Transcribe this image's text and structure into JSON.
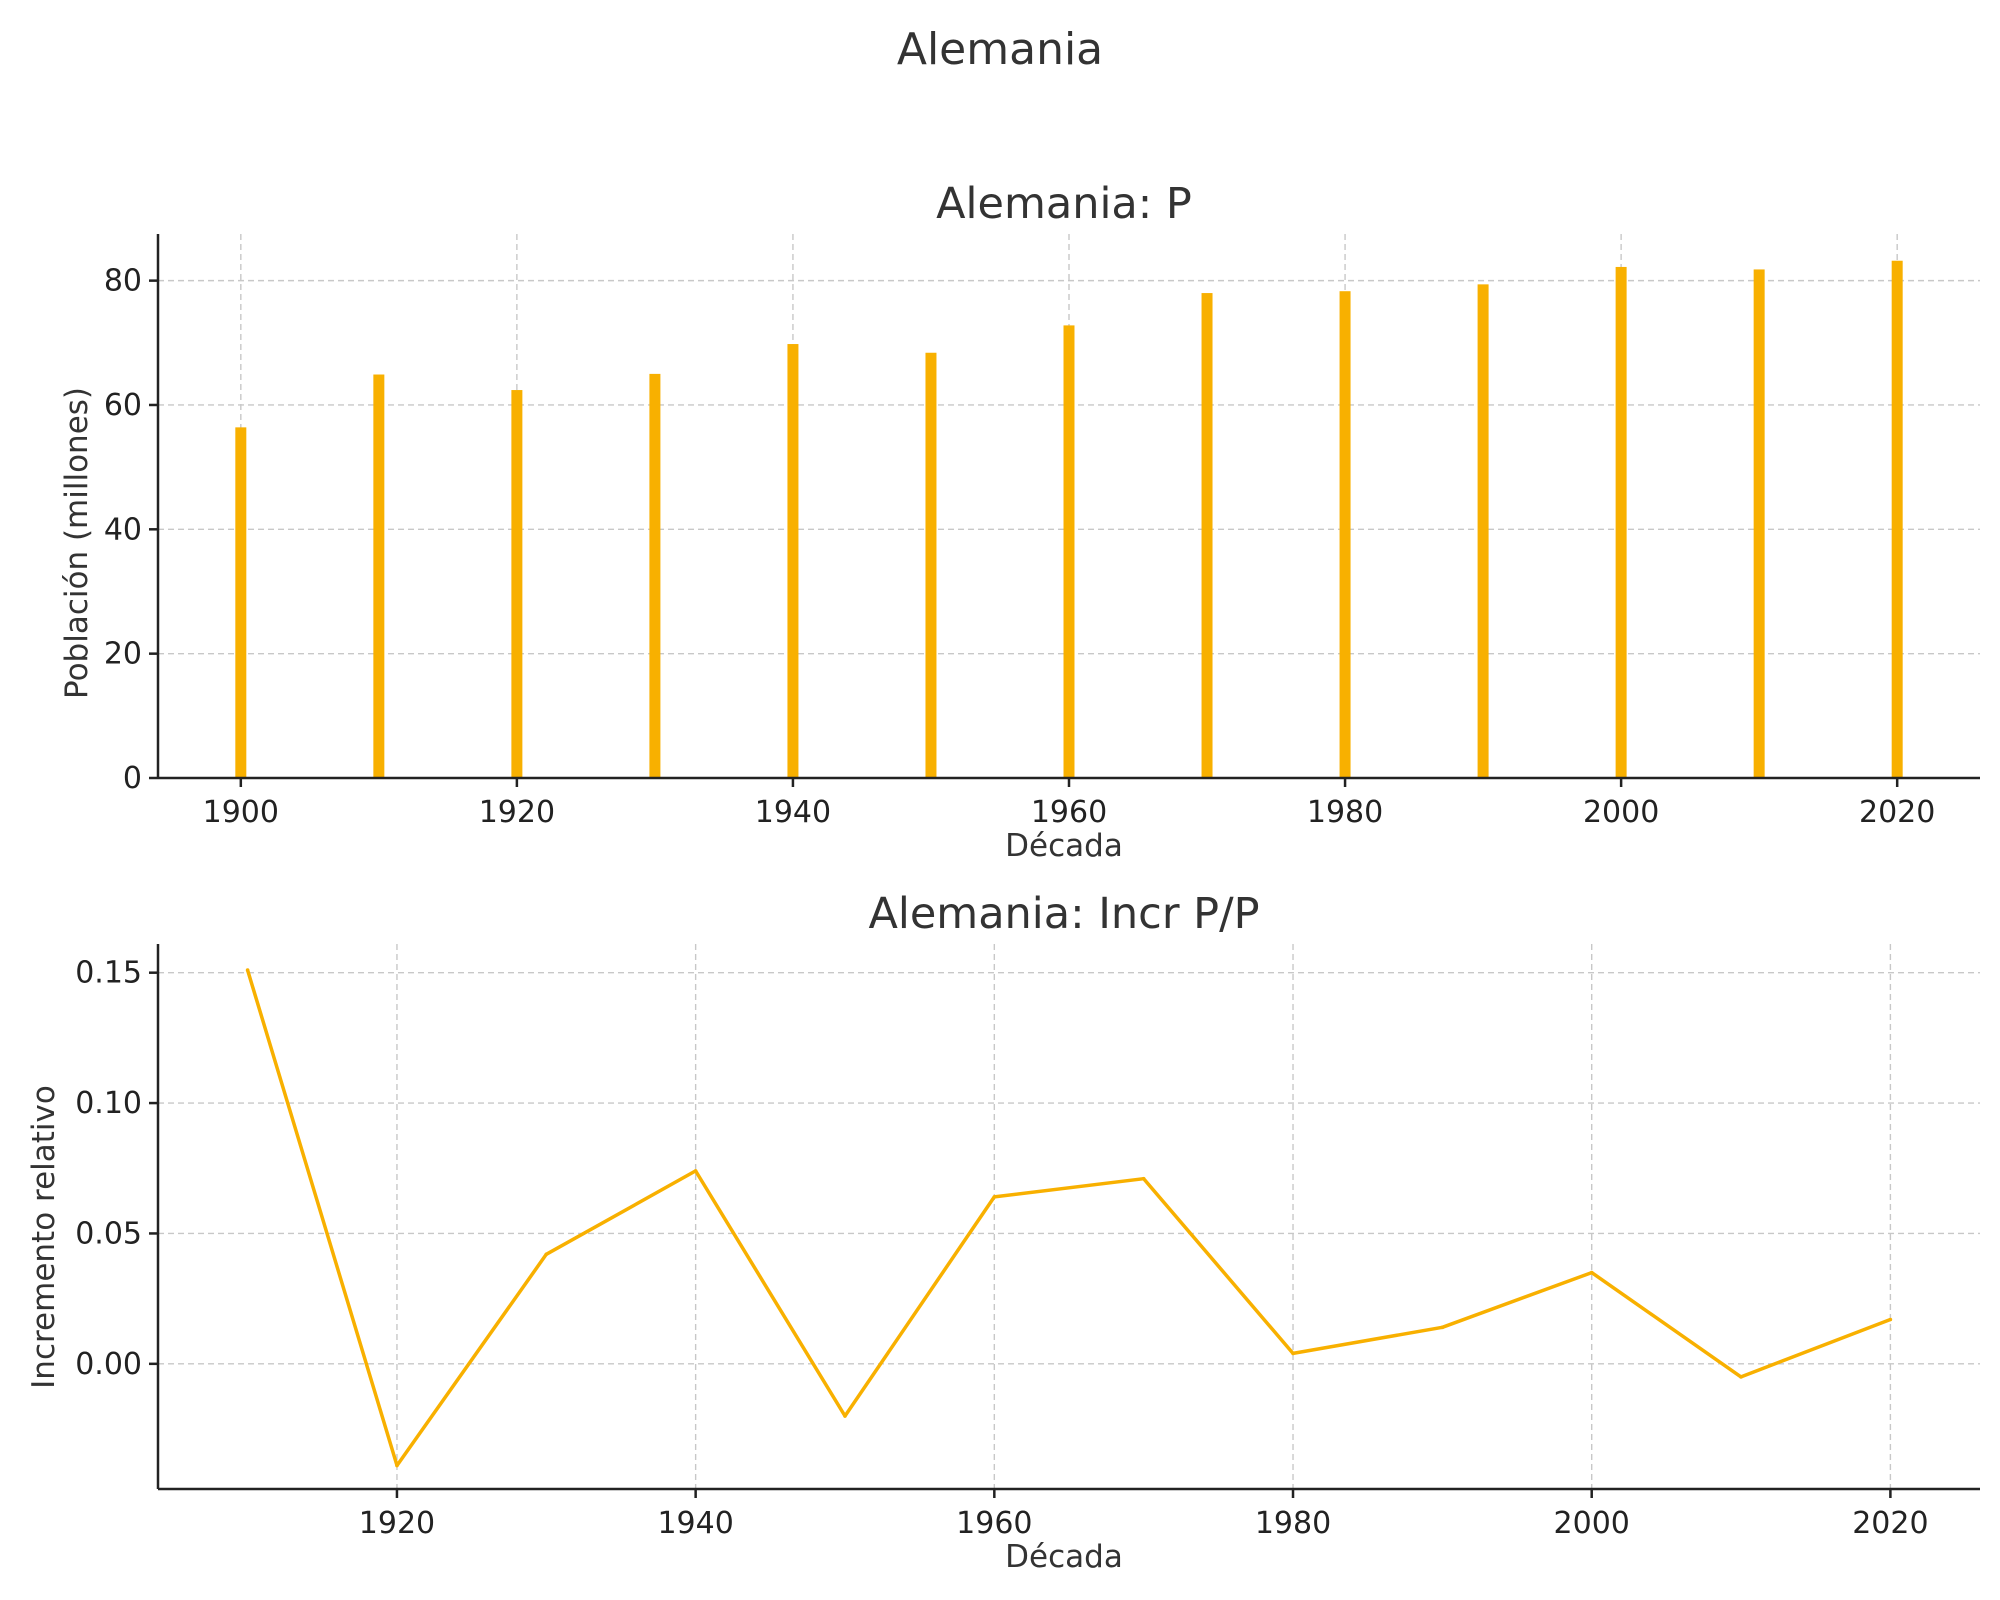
{
  "figure": {
    "suptitle": "Alemania",
    "accent_color": "#f8b000"
  },
  "chart_data": [
    {
      "type": "bar",
      "title": "Alemania: P",
      "xlabel": "Década",
      "ylabel": "Población (millones)",
      "x": [
        1900,
        1910,
        1920,
        1930,
        1940,
        1950,
        1960,
        1970,
        1980,
        1990,
        2000,
        2010,
        2020
      ],
      "values": [
        56.4,
        64.9,
        62.4,
        65.0,
        69.8,
        68.4,
        72.8,
        78.0,
        78.3,
        79.4,
        82.2,
        81.8,
        83.2
      ],
      "xlim": [
        1894,
        2026
      ],
      "ylim": [
        0,
        87.5
      ],
      "xticks": [
        1900,
        1920,
        1940,
        1960,
        1980,
        2000,
        2020
      ],
      "yticks": [
        0,
        20,
        40,
        60,
        80
      ],
      "grid": true,
      "color": "#f8b000"
    },
    {
      "type": "line",
      "title": "Alemania: Incr P/P",
      "xlabel": "Década",
      "ylabel": "Incremento relativo",
      "x": [
        1910,
        1920,
        1930,
        1940,
        1950,
        1960,
        1970,
        1980,
        1990,
        2000,
        2010,
        2020
      ],
      "values": [
        0.151,
        -0.039,
        0.042,
        0.074,
        -0.02,
        0.064,
        0.071,
        0.004,
        0.014,
        0.035,
        -0.005,
        0.017
      ],
      "xlim": [
        1904,
        2026
      ],
      "ylim": [
        -0.048,
        0.161
      ],
      "xticks": [
        1920,
        1940,
        1960,
        1980,
        2000,
        2020
      ],
      "yticks": [
        "0.00",
        "0.05",
        "0.10",
        "0.15"
      ],
      "grid": true,
      "color": "#f8b000"
    }
  ]
}
